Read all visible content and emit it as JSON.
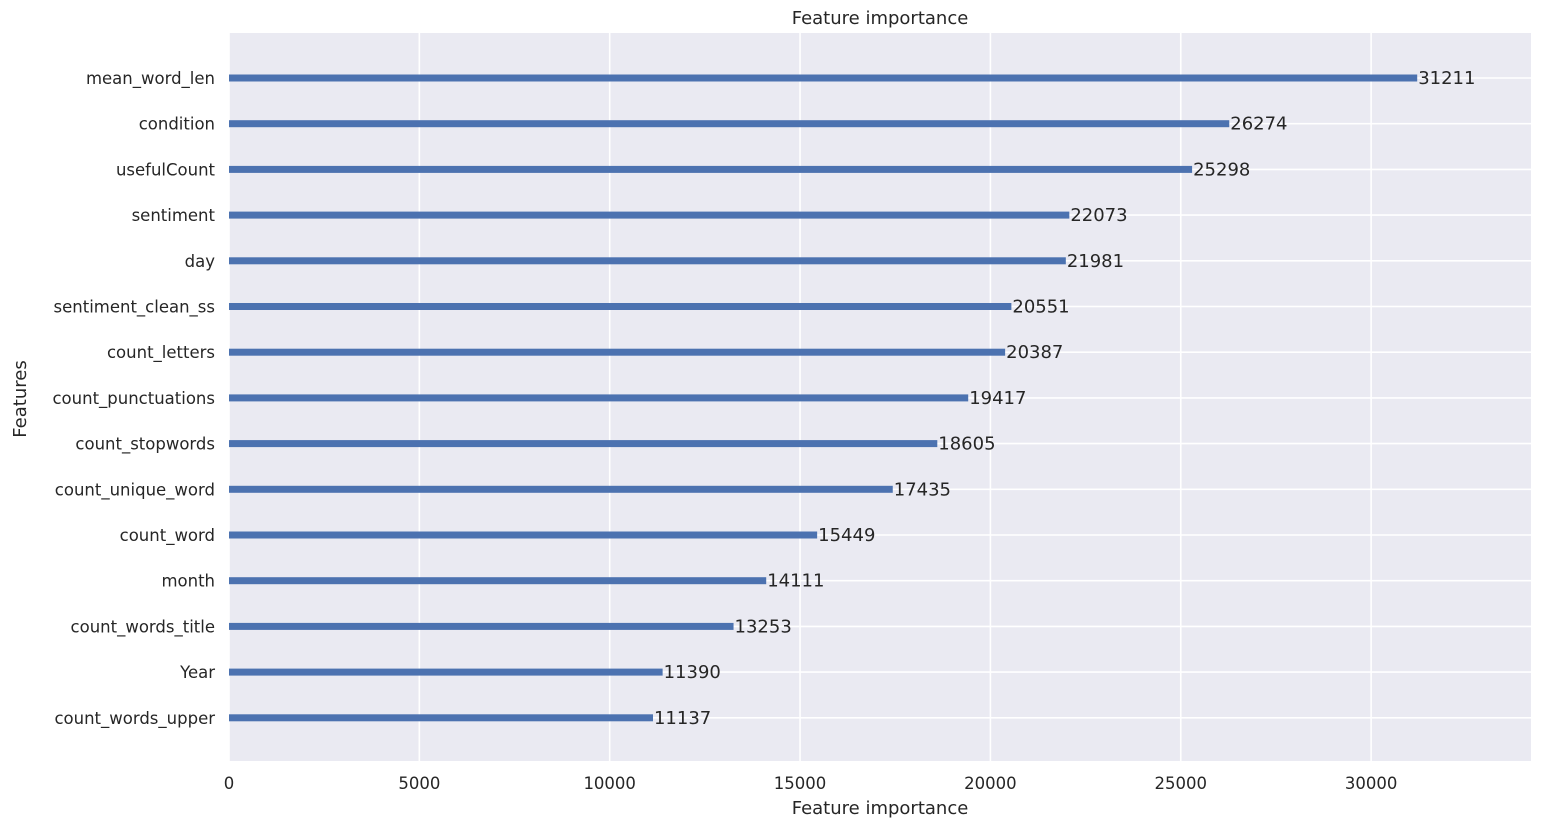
{
  "chart_data": {
    "type": "bar",
    "orientation": "horizontal",
    "title": "Feature importance",
    "xlabel": "Feature importance",
    "ylabel": "Features",
    "xlim": [
      0,
      34200
    ],
    "xticks": [
      0,
      5000,
      10000,
      15000,
      20000,
      25000,
      30000
    ],
    "grid": true,
    "categories": [
      "mean_word_len",
      "condition",
      "usefulCount",
      "sentiment",
      "day",
      "sentiment_clean_ss",
      "count_letters",
      "count_punctuations",
      "count_stopwords",
      "count_unique_word",
      "count_word",
      "month",
      "count_words_title",
      "Year",
      "count_words_upper"
    ],
    "values": [
      31211,
      26274,
      25298,
      22073,
      21981,
      20551,
      20387,
      19417,
      18605,
      17435,
      15449,
      14111,
      13253,
      11390,
      11137
    ],
    "colors": {
      "bar": "#4c72b0",
      "plot_bg": "#eaeaf2",
      "grid": "#ffffff",
      "text": "#262626"
    }
  }
}
